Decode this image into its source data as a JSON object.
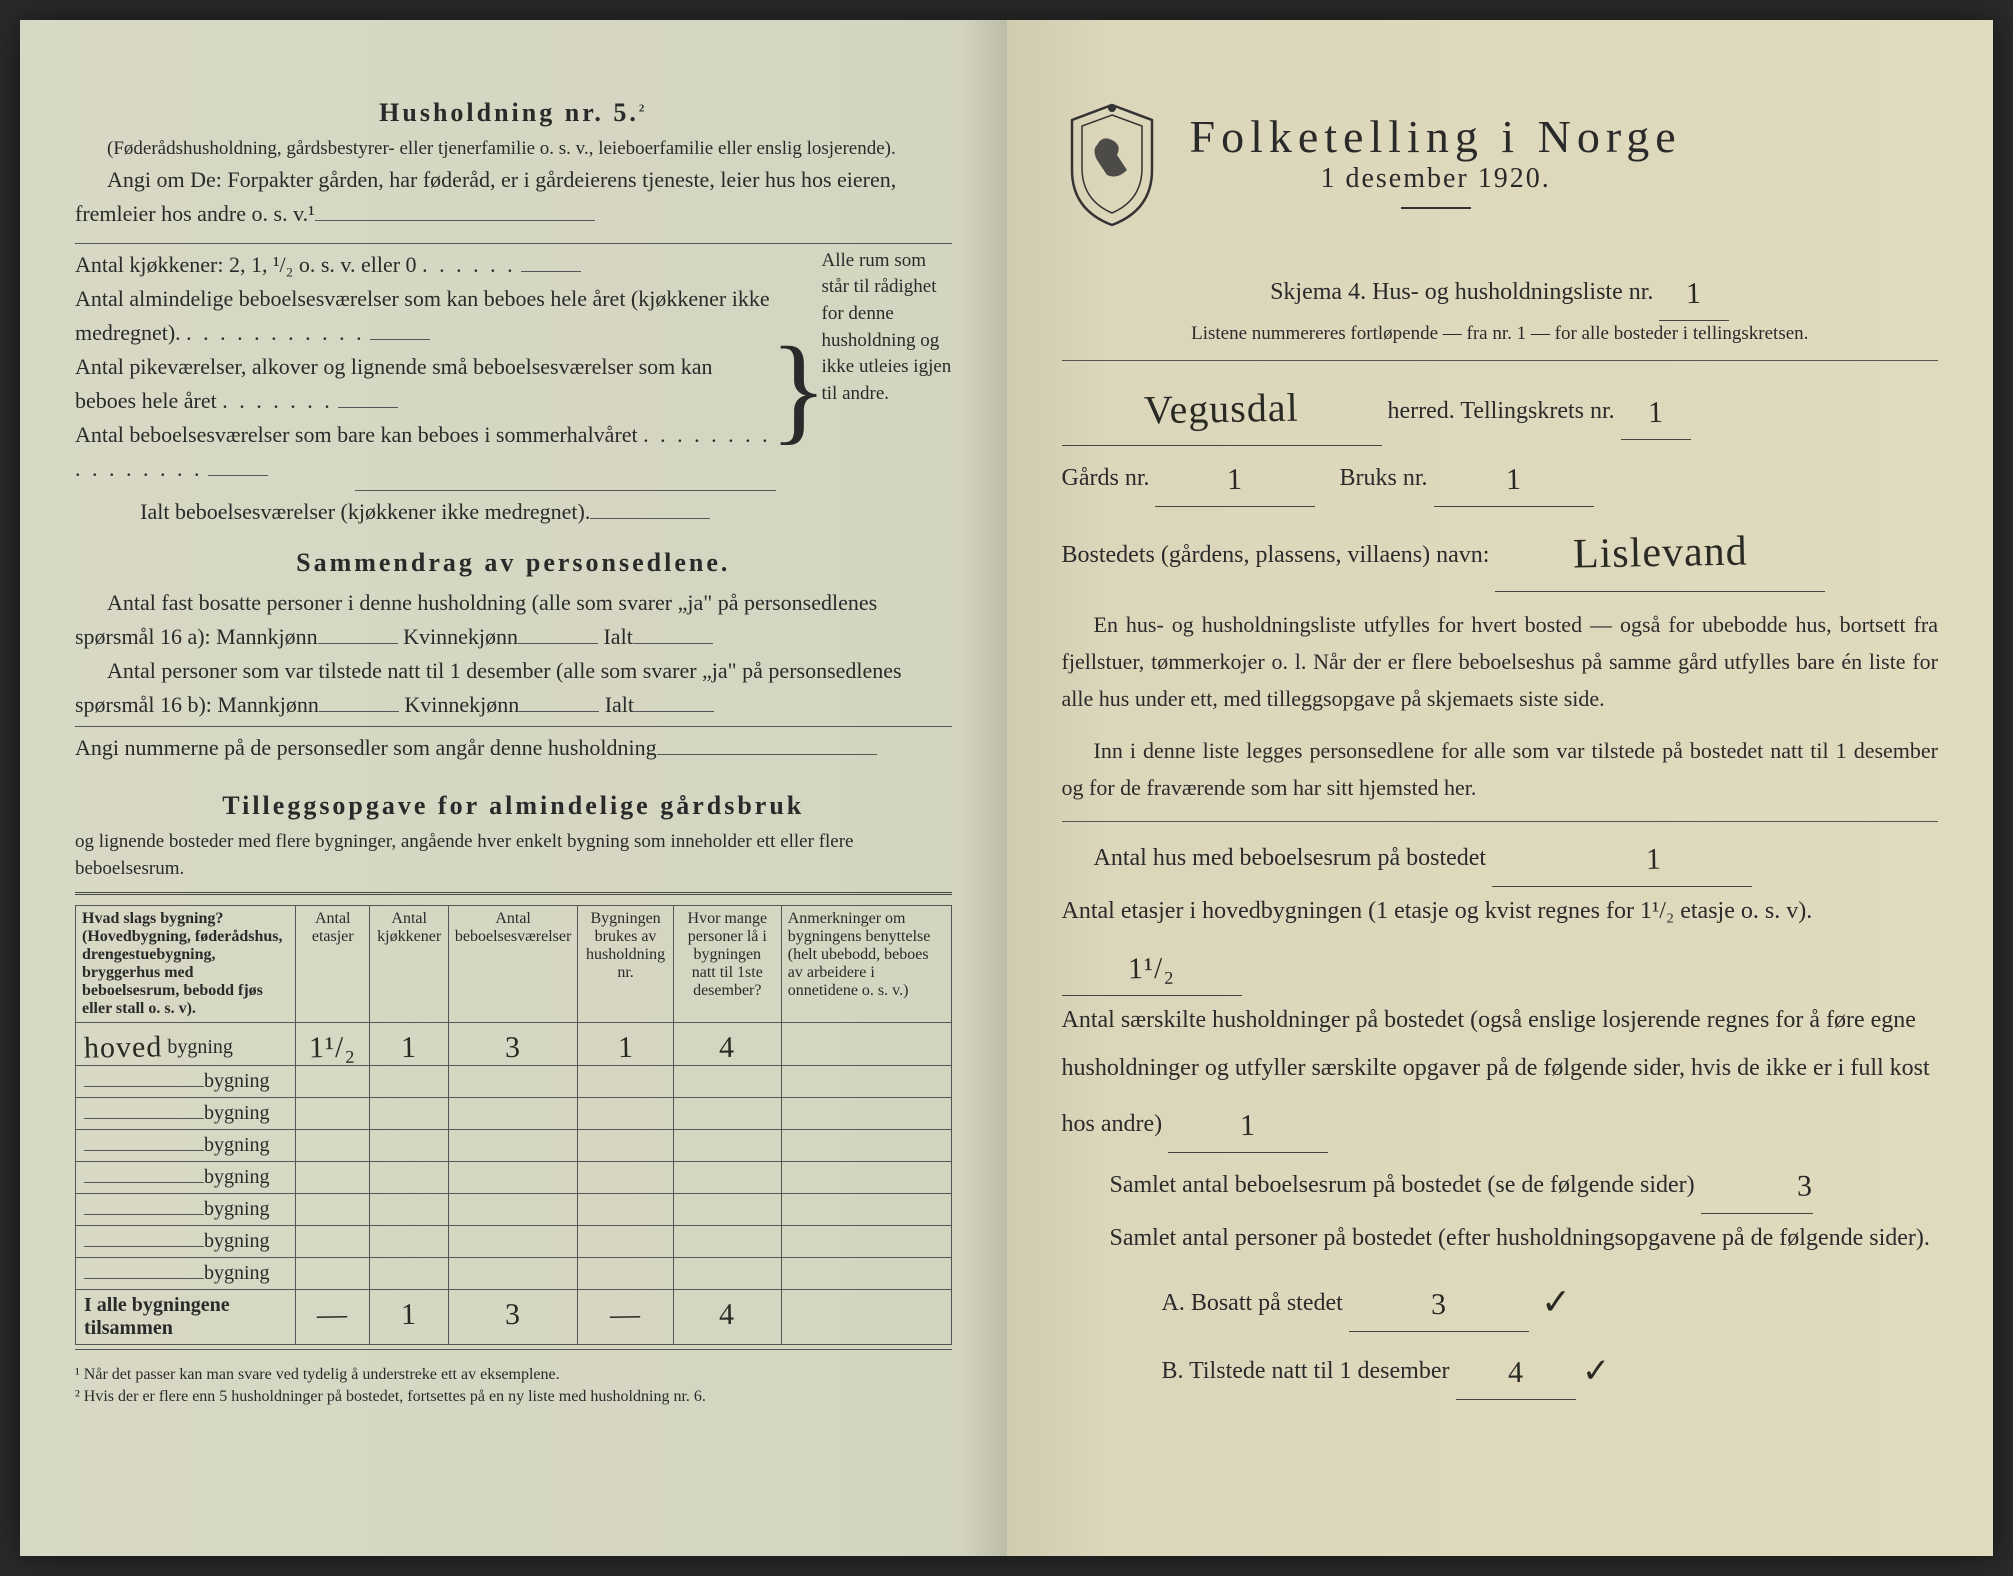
{
  "left": {
    "section1_title": "Husholdning nr. 5.",
    "section1_sup": "2",
    "section1_sub": "(Føderådshusholdning, gårdsbestyrer- eller tjenerfamilie o. s. v., leieboerfamilie eller enslig losjerende).",
    "section1_para": "Angi om De: Forpakter gården, har føderåd, er i gårdeierens tjeneste, leier hus hos eieren, fremleier hos andre o. s. v.¹",
    "kitchens": "Antal kjøkkener: 2, 1, ¹/₂ o. s. v. eller 0",
    "rooms1": "Antal almindelige beboelsesværelser som kan beboes hele året (kjøkkener ikke medregnet).",
    "rooms2": "Antal pikeværelser, alkover og lignende små beboelsesværelser som kan beboes hele året",
    "rooms3": "Antal beboelsesværelser som bare kan beboes i sommerhalvåret",
    "rooms_total": "Ialt beboelsesværelser  (kjøkkener ikke medregnet).",
    "brace_note": "Alle rum som står til rådighet for denne husholdning og ikke utleies igjen til andre.",
    "section2_title": "Sammendrag av personsedlene.",
    "sec2_line1": "Antal fast bosatte personer i denne husholdning (alle som svarer „ja\" på personsedlenes spørsmål 16 a): Mannkjønn",
    "sec2_kv": "Kvinnekjønn",
    "sec2_ialt": "Ialt",
    "sec2_line2": "Antal personer som var tilstede natt til 1 desember (alle som svarer „ja\" på personsedlenes spørsmål 16 b): Mannkjønn",
    "sec2_line3": "Angi nummerne på de personsedler som angår denne husholdning",
    "section3_title": "Tilleggsopgave for almindelige gårdsbruk",
    "section3_sub": "og lignende bosteder med flere bygninger, angående hver enkelt bygning som inneholder ett eller flere beboelsesrum.",
    "table": {
      "headers": [
        "Hvad slags bygning?\n(Hovedbygning, føderådshus, drengestuebygning, bryggerhus med beboelsesrum, bebodd fjøs eller stall o. s. v).",
        "Antal etasjer",
        "Antal kjøkkener",
        "Antal beboelsesværelser",
        "Bygningen brukes av husholdning nr.",
        "Hvor mange personer lå i bygningen natt til 1ste desember?",
        "Anmerkninger om bygningens benyttelse (helt ubebodd, beboes av arbeidere i onnetidene o. s. v.)"
      ],
      "rows": [
        {
          "label_hw": "hoved",
          "label_print": "bygning",
          "values": [
            "1¹/₂",
            "1",
            "3",
            "1",
            "4",
            ""
          ]
        },
        {
          "label_hw": "",
          "label_print": "bygning",
          "values": [
            "",
            "",
            "",
            "",
            "",
            ""
          ]
        },
        {
          "label_hw": "",
          "label_print": "bygning",
          "values": [
            "",
            "",
            "",
            "",
            "",
            ""
          ]
        },
        {
          "label_hw": "",
          "label_print": "bygning",
          "values": [
            "",
            "",
            "",
            "",
            "",
            ""
          ]
        },
        {
          "label_hw": "",
          "label_print": "bygning",
          "values": [
            "",
            "",
            "",
            "",
            "",
            ""
          ]
        },
        {
          "label_hw": "",
          "label_print": "bygning",
          "values": [
            "",
            "",
            "",
            "",
            "",
            ""
          ]
        },
        {
          "label_hw": "",
          "label_print": "bygning",
          "values": [
            "",
            "",
            "",
            "",
            "",
            ""
          ]
        },
        {
          "label_hw": "",
          "label_print": "bygning",
          "values": [
            "",
            "",
            "",
            "",
            "",
            ""
          ]
        }
      ],
      "total_label": "I alle bygningene tilsammen",
      "totals": [
        "—",
        "1",
        "3",
        "—",
        "4",
        ""
      ]
    },
    "footnote1": "¹  Når det passer kan man svare ved tydelig å understreke ett av eksemplene.",
    "footnote2": "²  Hvis der er flere enn 5 husholdninger på bostedet, fortsettes på en ny liste med husholdning nr. 6."
  },
  "right": {
    "title": "Folketelling i Norge",
    "date": "1 desember 1920.",
    "skjema_line": "Skjema 4.   Hus- og husholdningsliste nr.",
    "skjema_nr": "1",
    "listene": "Listene nummereres fortløpende — fra nr. 1 — for alle bosteder i tellingskretsen.",
    "herred_hw": "Vegusdal",
    "herred_label": "herred.   Tellingskrets nr.",
    "tellingskrets_nr": "1",
    "gards_label": "Gårds nr.",
    "gards_nr": "1",
    "bruks_label": "Bruks nr.",
    "bruks_nr": "1",
    "bosted_label": "Bostedets (gårdens, plassens, villaens) navn:",
    "bosted_hw": "Lislevand",
    "para1": "En hus- og husholdningsliste utfylles for hvert bosted — også for ubebodde hus, bortsett fra fjellstuer, tømmerkojer o. l.  Når der er flere beboelseshus på samme gård utfylles bare én liste for alle hus under ett, med tilleggsopgave på skjemaets siste side.",
    "para2": "Inn i denne liste legges personsedlene for alle som var tilstede på bostedet natt til 1 desember og for de fraværende som har sitt hjemsted her.",
    "q1": "Antal hus med beboelsesrum på bostedet",
    "q1_val": "1",
    "q2a": "Antal etasjer i hovedbygningen (1 etasje og kvist regnes for 1¹/₂ etasje o. s. v).",
    "q2_val": "1¹/₂",
    "q3": "Antal særskilte husholdninger på bostedet (også enslige losjerende regnes for å føre egne husholdninger og utfyller særskilte opgaver på de følgende sider, hvis de ikke er i full kost hos andre)",
    "q3_val": "1",
    "q4": "Samlet antal beboelsesrum på bostedet (se de følgende sider)",
    "q4_val": "3",
    "q5": "Samlet antal personer på bostedet (efter husholdningsopgavene på de følgende sider).",
    "q5a_label": "A.  Bosatt på stedet",
    "q5a_val": "3",
    "q5a_check": "✓",
    "q5b_label": "B.  Tilstede natt til 1 desember",
    "q5b_val": "4",
    "q5b_check": "✓"
  },
  "colors": {
    "page_left_bg": "#d6d7c2",
    "page_right_bg": "#ded8bc",
    "text": "#2a2a2a",
    "hw": "#2a2a24",
    "rule": "#555555"
  }
}
